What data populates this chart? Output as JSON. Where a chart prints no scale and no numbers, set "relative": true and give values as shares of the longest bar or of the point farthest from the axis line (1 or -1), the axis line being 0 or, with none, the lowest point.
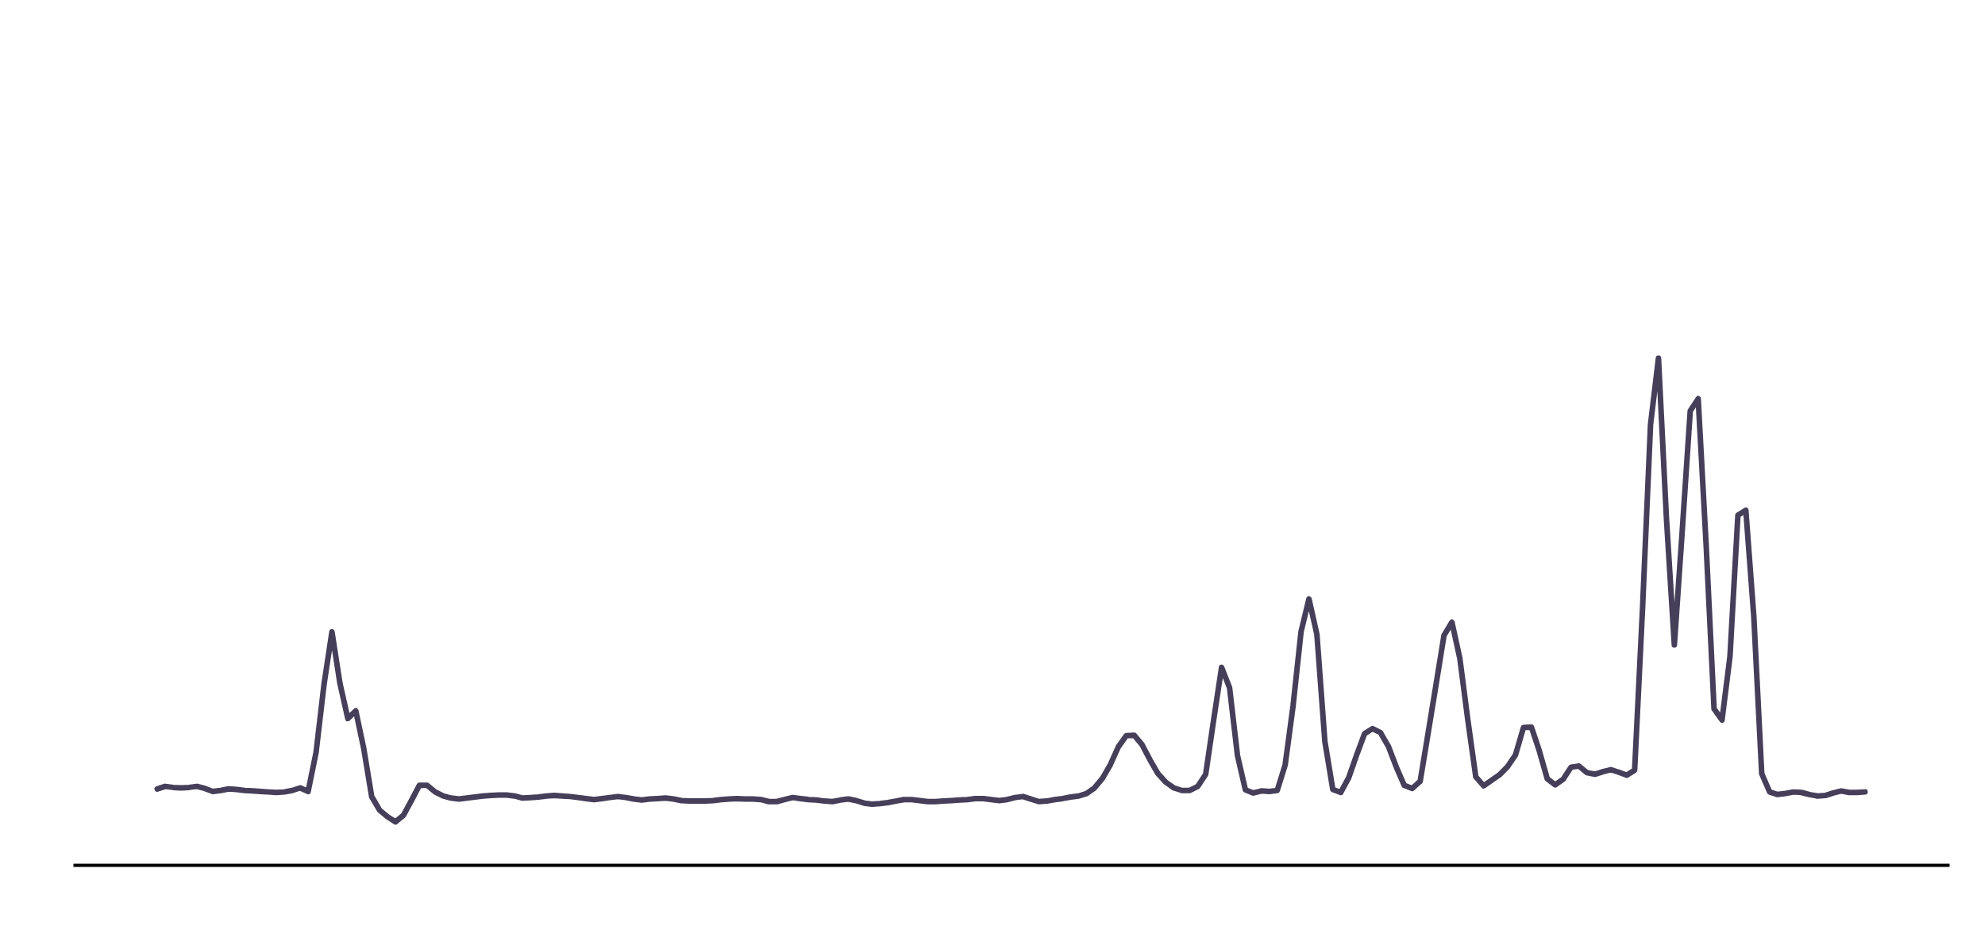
{
  "chart_data": {
    "type": "line",
    "relative": true,
    "categories": [
      null,
      null,
      null,
      null,
      null,
      null,
      null,
      null,
      null,
      null,
      null,
      null,
      null,
      null,
      null,
      null,
      null,
      null,
      null,
      null,
      null,
      null,
      null,
      null,
      null,
      null,
      null,
      null,
      null,
      null,
      null,
      null,
      null,
      null,
      null,
      null,
      null,
      null,
      null,
      null,
      null,
      null,
      null,
      null,
      null,
      null,
      null,
      null,
      null,
      null,
      null,
      null,
      null,
      null,
      null,
      null,
      null,
      null,
      null,
      null,
      null,
      null,
      null,
      null,
      null,
      null,
      null,
      null,
      null,
      null,
      null,
      null,
      null,
      null,
      null,
      null,
      null,
      null,
      null,
      null,
      null,
      null,
      null,
      null,
      null,
      null,
      null,
      null,
      null,
      null,
      null,
      null,
      null,
      null,
      null,
      null,
      null,
      null,
      null,
      null,
      null,
      null,
      null,
      null,
      null,
      null,
      null,
      null,
      null,
      null,
      null,
      null,
      null,
      null,
      null,
      null,
      null,
      null,
      null,
      null,
      null,
      null,
      null,
      null,
      null,
      null,
      null,
      null,
      null,
      null,
      null,
      null,
      null,
      null,
      null,
      null,
      null,
      null,
      null,
      null,
      null,
      null,
      null,
      null,
      null,
      null,
      null,
      null,
      null,
      null,
      null,
      null,
      null,
      null,
      null,
      null,
      null,
      null,
      null,
      null,
      null,
      null,
      null,
      null,
      null,
      null,
      null,
      null,
      null,
      null,
      null,
      null,
      null,
      null,
      null,
      null,
      null,
      null,
      null,
      null,
      null,
      null,
      null,
      null,
      null,
      null,
      null,
      null,
      null,
      null,
      null,
      null,
      null,
      null,
      null,
      null,
      null,
      null,
      null,
      null,
      null,
      null,
      null,
      null,
      null,
      null,
      null,
      null,
      null,
      null,
      null,
      null,
      null,
      null,
      null,
      null
    ],
    "series": [
      {
        "color": "#463f5a",
        "values": [
          0.15,
          0.155,
          0.153,
          0.152,
          0.153,
          0.155,
          0.151,
          0.145,
          0.147,
          0.15,
          0.149,
          0.147,
          0.146,
          0.145,
          0.144,
          0.143,
          0.144,
          0.147,
          0.152,
          0.145,
          0.222,
          0.356,
          0.46,
          0.359,
          0.289,
          0.304,
          0.23,
          0.135,
          0.108,
          0.095,
          0.085,
          0.098,
          0.127,
          0.157,
          0.157,
          0.144,
          0.136,
          0.132,
          0.13,
          0.132,
          0.134,
          0.136,
          0.137,
          0.138,
          0.138,
          0.136,
          0.132,
          0.133,
          0.134,
          0.136,
          0.137,
          0.136,
          0.135,
          0.133,
          0.131,
          0.129,
          0.131,
          0.133,
          0.135,
          0.133,
          0.13,
          0.128,
          0.13,
          0.131,
          0.132,
          0.13,
          0.127,
          0.126,
          0.126,
          0.126,
          0.127,
          0.129,
          0.13,
          0.131,
          0.13,
          0.13,
          0.129,
          0.125,
          0.125,
          0.129,
          0.133,
          0.131,
          0.129,
          0.128,
          0.126,
          0.125,
          0.128,
          0.13,
          0.127,
          0.122,
          0.12,
          0.121,
          0.123,
          0.126,
          0.129,
          0.129,
          0.127,
          0.125,
          0.125,
          0.126,
          0.127,
          0.128,
          0.129,
          0.131,
          0.131,
          0.129,
          0.127,
          0.129,
          0.133,
          0.135,
          0.13,
          0.125,
          0.126,
          0.129,
          0.131,
          0.134,
          0.136,
          0.141,
          0.152,
          0.171,
          0.198,
          0.233,
          0.255,
          0.256,
          0.237,
          0.207,
          0.18,
          0.163,
          0.152,
          0.147,
          0.147,
          0.155,
          0.179,
          0.286,
          0.39,
          0.35,
          0.216,
          0.148,
          0.142,
          0.146,
          0.145,
          0.147,
          0.197,
          0.314,
          0.46,
          0.525,
          0.455,
          0.244,
          0.149,
          0.143,
          0.172,
          0.217,
          0.259,
          0.269,
          0.261,
          0.234,
          0.193,
          0.157,
          0.151,
          0.165,
          0.26,
          0.356,
          0.453,
          0.479,
          0.407,
          0.286,
          0.174,
          0.156,
          0.167,
          0.178,
          0.194,
          0.217,
          0.271,
          0.272,
          0.225,
          0.17,
          0.158,
          0.169,
          0.193,
          0.195,
          0.182,
          0.179,
          0.184,
          0.188,
          0.183,
          0.177,
          0.187,
          0.508,
          0.869,
          1,
          0.685,
          0.434,
          0.661,
          0.896,
          0.92,
          0.632,
          0.308,
          0.286,
          0.411,
          0.69,
          0.7,
          0.491,
          0.18,
          0.144,
          0.139,
          0.141,
          0.144,
          0.143,
          0.139,
          0.136,
          0.137,
          0.142,
          0.146,
          0.143,
          0.143,
          0.144
        ]
      }
    ]
  }
}
